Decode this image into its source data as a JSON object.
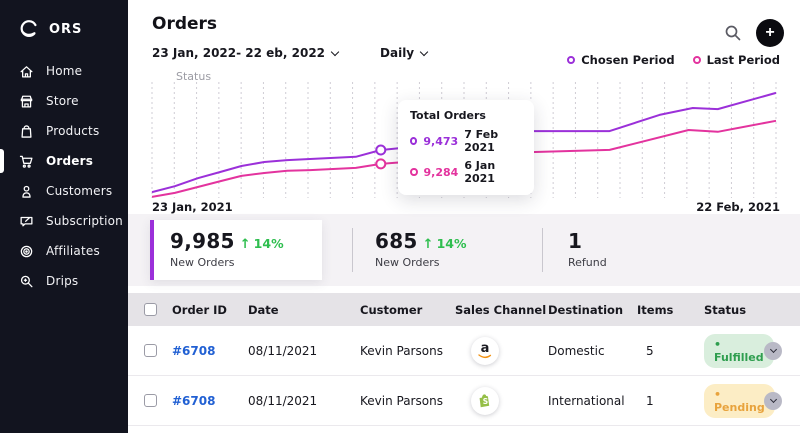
{
  "app": {
    "name": "ORS"
  },
  "sidebar": {
    "items": [
      {
        "label": "Home",
        "icon": "home",
        "active": false
      },
      {
        "label": "Store",
        "icon": "store",
        "active": false
      },
      {
        "label": "Products",
        "icon": "products",
        "active": false
      },
      {
        "label": "Orders",
        "icon": "orders",
        "active": true
      },
      {
        "label": "Customers",
        "icon": "customers",
        "active": false
      },
      {
        "label": "Subscription",
        "icon": "subscription",
        "active": false
      },
      {
        "label": "Affiliates",
        "icon": "affiliates",
        "active": false
      },
      {
        "label": "Drips",
        "icon": "drips",
        "active": false
      }
    ]
  },
  "header": {
    "title": "Orders",
    "date_range": "23 Jan, 2022- 22 eb, 2022",
    "frequency": "Daily",
    "add_button_label": "+"
  },
  "legend": {
    "items": [
      {
        "label": "Chosen Period",
        "color": "#9B30D9"
      },
      {
        "label": "Last Period",
        "color": "#E3339E"
      }
    ]
  },
  "chart": {
    "y_axis_label": "Status",
    "x_start_label": "23 Jan, 2021",
    "x_end_label": "22 Feb, 2021",
    "tooltip": {
      "title": "Total Orders",
      "rows": [
        {
          "value": "9,473",
          "date": "7 Feb 2021",
          "color": "#9B30D9"
        },
        {
          "value": "9,284",
          "date": "6 Jan 2021",
          "color": "#E3339E"
        }
      ]
    }
  },
  "chart_data": {
    "type": "line",
    "title": "Total Orders",
    "x_range_labels": [
      "23 Jan, 2021",
      "22 Feb, 2021"
    ],
    "x_unit": "day index 0-30",
    "grid": "vertical-dashed",
    "legend_position": "top-right",
    "y_implied_range": [
      8800,
      10400
    ],
    "series": [
      {
        "name": "Chosen Period",
        "color": "#9B30D9",
        "marker_day": 11,
        "marker_value": 9473,
        "points": [
          [
            0,
            8900
          ],
          [
            1.1,
            8980
          ],
          [
            2.2,
            9090
          ],
          [
            3.3,
            9175
          ],
          [
            4.3,
            9255
          ],
          [
            5.4,
            9310
          ],
          [
            6.5,
            9335
          ],
          [
            7.6,
            9350
          ],
          [
            8.7,
            9365
          ],
          [
            9.8,
            9380
          ],
          [
            11,
            9473
          ],
          [
            12,
            9500
          ],
          [
            14.3,
            9610
          ],
          [
            18.2,
            9730
          ],
          [
            22,
            9730
          ],
          [
            24.4,
            9950
          ],
          [
            26,
            10045
          ],
          [
            27.2,
            10030
          ],
          [
            30,
            10250
          ]
        ]
      },
      {
        "name": "Last Period",
        "color": "#E3339E",
        "marker_day": 11,
        "marker_value": 9284,
        "points": [
          [
            0,
            8835
          ],
          [
            1.1,
            8890
          ],
          [
            2.2,
            8970
          ],
          [
            3.3,
            9050
          ],
          [
            4.3,
            9120
          ],
          [
            5.4,
            9160
          ],
          [
            6.5,
            9190
          ],
          [
            7.6,
            9200
          ],
          [
            8.7,
            9215
          ],
          [
            9.8,
            9230
          ],
          [
            11,
            9284
          ],
          [
            18.2,
            9445
          ],
          [
            22,
            9475
          ],
          [
            25.8,
            9745
          ],
          [
            27.2,
            9720
          ],
          [
            30,
            9870
          ]
        ]
      }
    ]
  },
  "stats": [
    {
      "value": "9,985",
      "delta": "14%",
      "delta_dir": "up",
      "delta_color": "#2fbe4f",
      "label": "New Orders",
      "highlighted": true
    },
    {
      "value": "685",
      "delta": "14%",
      "delta_dir": "up",
      "delta_color": "#2fbe4f",
      "label": "New Orders",
      "highlighted": false
    },
    {
      "value": "1",
      "label": "Refund",
      "highlighted": false
    }
  ],
  "table": {
    "columns": [
      "Order ID",
      "Date",
      "Customer",
      "Sales Channel",
      "Destination",
      "Items",
      "Status"
    ],
    "rows": [
      {
        "order_id": "#6708",
        "date": "08/11/2021",
        "customer": "Kevin Parsons",
        "sales_channel": "amazon",
        "destination": "Domestic",
        "items": "5",
        "status": "Fulfilled",
        "status_type": "fulfilled"
      },
      {
        "order_id": "#6708",
        "date": "08/11/2021",
        "customer": "Kevin Parsons",
        "sales_channel": "shopify",
        "destination": "International",
        "items": "1",
        "status": "Pending",
        "status_type": "pending"
      }
    ],
    "status_colors": {
      "fulfilled": {
        "bg": "#d9eedd",
        "text": "#2f9e4f"
      },
      "pending": {
        "bg": "#fcedc5",
        "text": "#e8a33d"
      }
    }
  }
}
